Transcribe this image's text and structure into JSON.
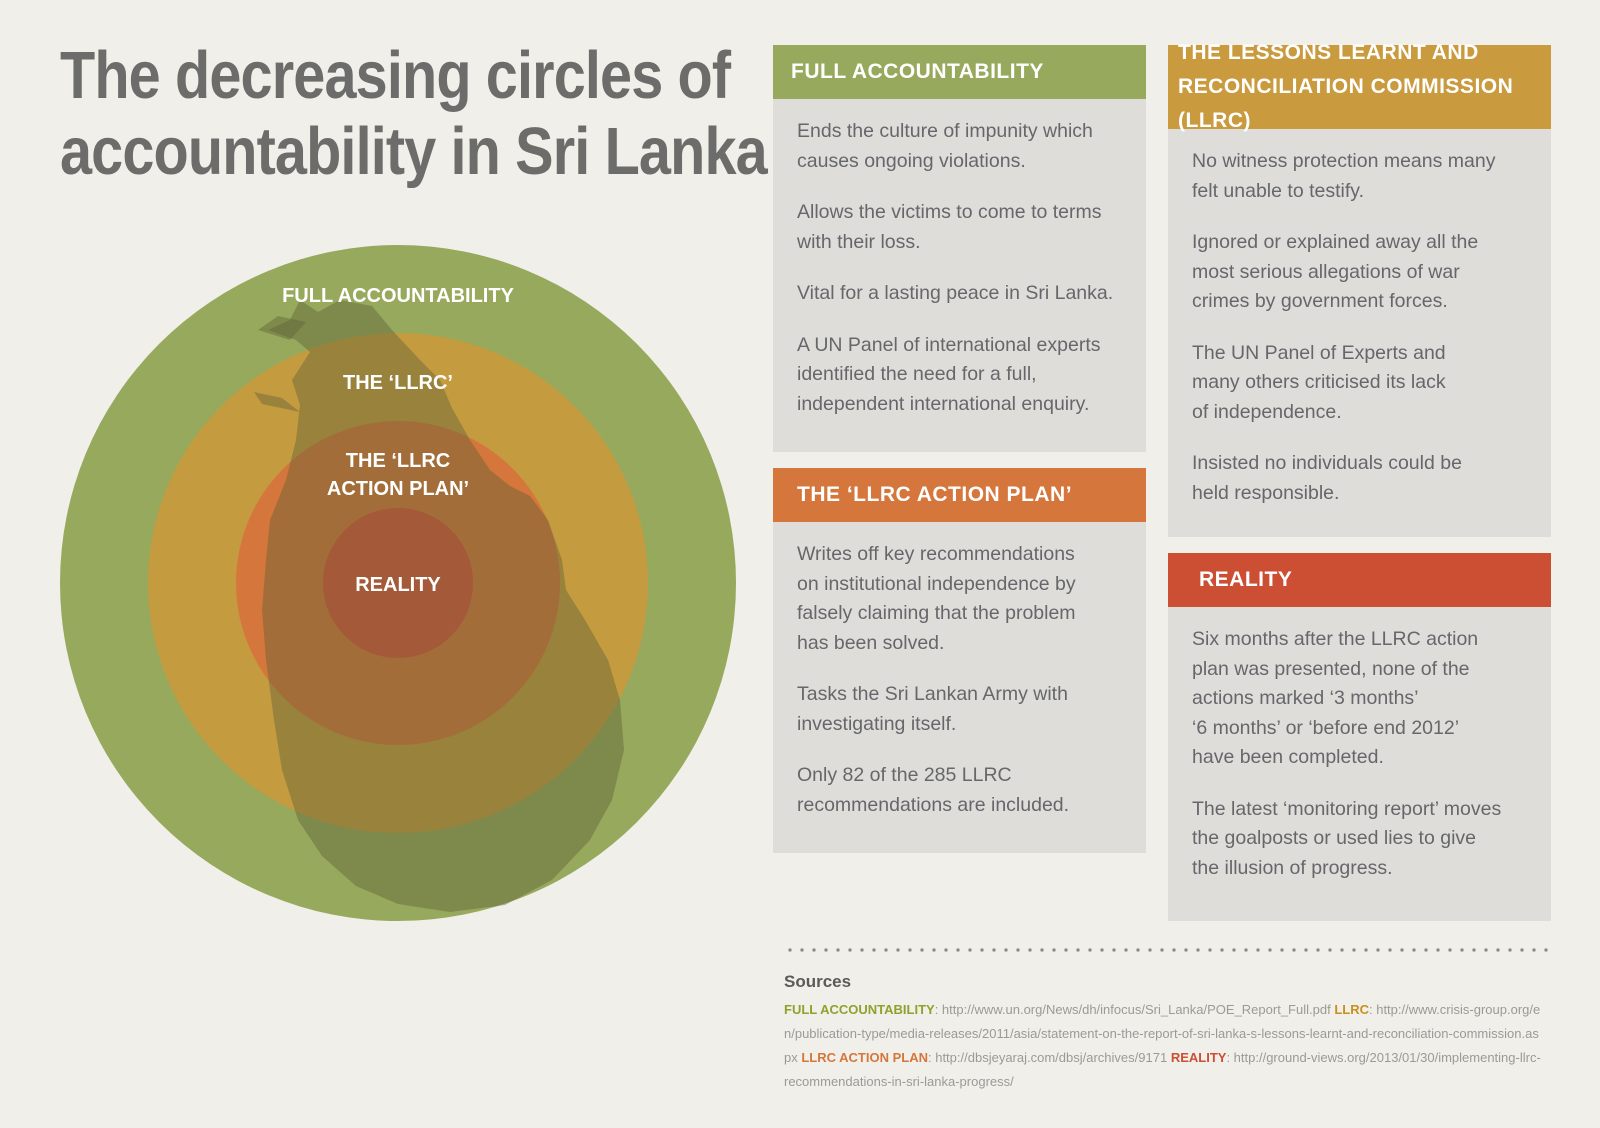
{
  "title": {
    "line1": "The decreasing circles of",
    "line2": "accountability in Sri Lanka"
  },
  "colors": {
    "green": "#97a95c",
    "amber": "#c99a3e",
    "orange": "#d5773c",
    "red": "#d8553a",
    "map": "#6e7045",
    "panel_bg": "#deddda",
    "page_bg": "#f0efea"
  },
  "diagram": {
    "rings": [
      {
        "label": "FULL ACCOUNTABILITY"
      },
      {
        "label": "THE ‘LLRC’"
      },
      {
        "label_line1": "THE ‘LLRC",
        "label_line2": "ACTION PLAN’"
      },
      {
        "label": "REALITY"
      }
    ]
  },
  "panels": {
    "full_accountability": {
      "heading": "FULL ACCOUNTABILITY",
      "paragraphs": [
        "Ends the culture of impunity which\ncauses ongoing violations.",
        "Allows the victims to come to terms\nwith their loss.",
        "Vital for a lasting peace in Sri Lanka.",
        "A UN Panel of international experts\nidentified the need for a full,\nindependent international enquiry."
      ]
    },
    "llrc": {
      "heading_line1": "THE LESSONS LEARNT AND",
      "heading_line2": "RECONCILIATION COMMISSION (LLRC)",
      "paragraphs": [
        "No witness protection means many\nfelt unable to testify.",
        "Ignored or explained away all the\nmost serious allegations of war\ncrimes by government forces.",
        "The UN Panel of Experts and\nmany others criticised its lack\nof independence.",
        "Insisted no individuals could be\nheld responsible."
      ]
    },
    "action_plan": {
      "heading": "THE ‘LLRC ACTION PLAN’",
      "paragraphs": [
        "Writes off key recommendations\non institutional independence by\nfalsely claiming that the problem\nhas been solved.",
        "Tasks the Sri Lankan Army with\ninvestigating itself.",
        "Only 82 of the 285 LLRC\nrecommendations are included."
      ]
    },
    "reality": {
      "heading": "REALITY",
      "paragraphs": [
        "Six months after the LLRC action\nplan was presented, none of the\nactions marked ‘3 months’\n‘6 months’ or ‘before end 2012’\nhave been completed.",
        "The latest ‘monitoring report’ moves\nthe goalposts or used lies to give\nthe illusion of progress."
      ]
    }
  },
  "sources": {
    "title": "Sources",
    "full_label": "FULL ACCOUNTABILITY",
    "full_url": "http://www.un.org/News/dh/infocus/Sri_Lanka/POE_Report_Full.pdf",
    "llrc_label": "LLRC",
    "llrc_url": "http://www.crisis-group.org/en/publication-type/media-releases/2011/asia/statement-on-the-report-of-sri-lanka-s-lessons-learnt-and-reconciliation-commission.aspx",
    "plan_label": "LLRC ACTION PLAN",
    "plan_url": "http://dbsjeyaraj.com/dbsj/archives/9171",
    "reality_label": "REALITY",
    "reality_url": "http://ground-views.org/2013/01/30/implementing-llrc-recommendations-in-sri-lanka-progress/"
  }
}
